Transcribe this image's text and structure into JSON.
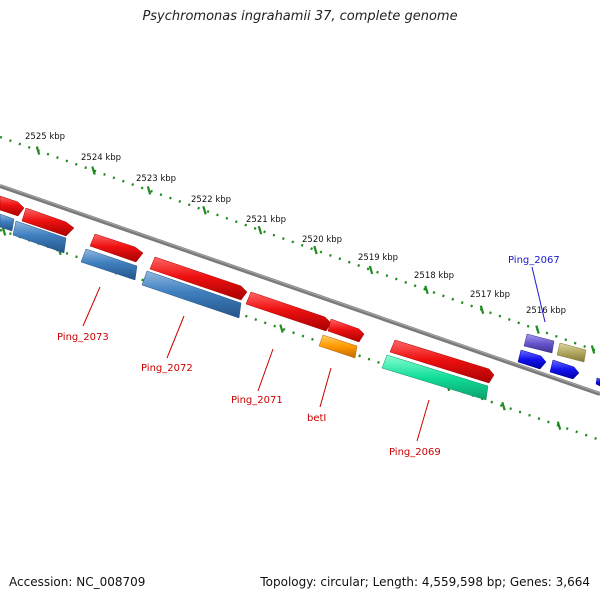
{
  "title": "Psychromonas ingrahamii 37, complete genome",
  "footer": {
    "accession": "Accession: NC_008709",
    "summary": "Topology: circular; Length: 4,559,598 bp; Genes: 3,664"
  },
  "ticks": {
    "unit": "kbp",
    "labels": [
      "2525 kbp",
      "2524 kbp",
      "2523 kbp",
      "2522 kbp",
      "2521 kbp",
      "2520 kbp",
      "2519 kbp",
      "2518 kbp",
      "2517 kbp",
      "2516 kbp"
    ]
  },
  "gene_labels": [
    {
      "name": "Ping_2073",
      "color": "#cc0000"
    },
    {
      "name": "Ping_2072",
      "color": "#cc0000"
    },
    {
      "name": "Ping_2071",
      "color": "#cc0000"
    },
    {
      "name": "betI",
      "color": "#cc0000"
    },
    {
      "name": "Ping_2069",
      "color": "#cc0000"
    },
    {
      "name": "Ping_2067",
      "color": "#1a1acc"
    }
  ],
  "colors": {
    "backbone": "#7a7a7a",
    "tick_dots": "#1f8a1f",
    "cds_forward": "#ee1111",
    "cds_blue": "#3f7fbf",
    "cds_orange": "#ff9900",
    "cds_green": "#11dd99",
    "cds_purple": "#6655cc",
    "cds_olive": "#b3a860",
    "cds_navy": "#1111ee"
  }
}
